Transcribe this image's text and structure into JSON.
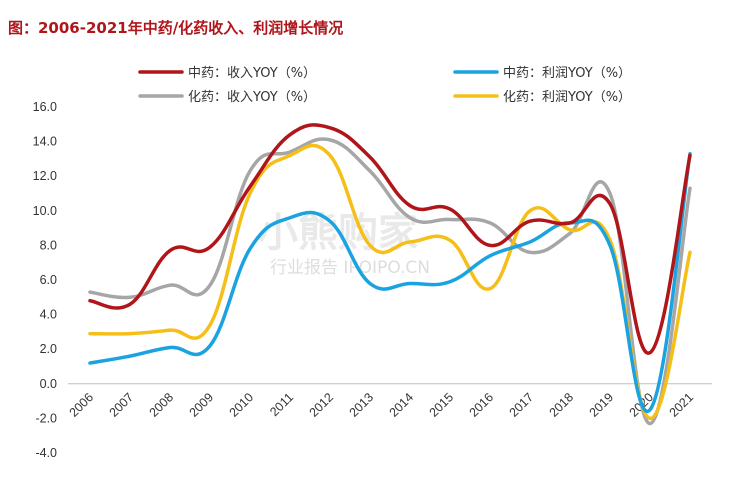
{
  "title": "图：2006-2021年中药/化药收入、利润增长情况",
  "watermark": {
    "line1": "小熊购家",
    "line2": "行业报告 IPOIPO.CN"
  },
  "chart_data": {
    "type": "line",
    "x": [
      "2006",
      "2007",
      "2008",
      "2009",
      "2010",
      "2011",
      "2012",
      "2013",
      "2014",
      "2015",
      "2016",
      "2017",
      "2018",
      "2019",
      "2020",
      "2021"
    ],
    "ylim": [
      -4.0,
      16.0
    ],
    "yticks": [
      "16.0",
      "14.0",
      "12.0",
      "10.0",
      "8.0",
      "6.0",
      "4.0",
      "2.0",
      "0.0",
      "-2.0",
      "-4.0"
    ],
    "legend_position": "top",
    "series": [
      {
        "name": "中药：收入YOY（%）",
        "color": "#b0151a",
        "values": [
          4.8,
          4.6,
          7.7,
          7.9,
          11.4,
          14.4,
          14.8,
          13.1,
          10.3,
          10.1,
          8.0,
          9.4,
          9.3,
          10.4,
          1.8,
          13.2
        ]
      },
      {
        "name": "中药：利润YOY（%）",
        "color": "#1aa3e0",
        "values": [
          1.2,
          1.6,
          2.1,
          2.2,
          7.8,
          9.6,
          9.4,
          5.8,
          5.8,
          5.9,
          7.4,
          8.2,
          9.3,
          8.0,
          -1.5,
          13.3
        ]
      },
      {
        "name": "化药：收入YOY（%）",
        "color": "#a6a6a6",
        "values": [
          5.3,
          5.0,
          5.7,
          5.7,
          12.3,
          13.4,
          14.1,
          12.3,
          9.6,
          9.5,
          9.3,
          7.6,
          8.7,
          11.0,
          -2.3,
          11.3
        ]
      },
      {
        "name": "化药：利润YOY（%）",
        "color": "#f5bf18",
        "values": [
          2.9,
          2.9,
          3.1,
          3.4,
          11.0,
          13.2,
          13.2,
          8.0,
          8.2,
          8.3,
          5.5,
          10.0,
          8.9,
          8.3,
          -2.0,
          7.6
        ]
      }
    ]
  }
}
